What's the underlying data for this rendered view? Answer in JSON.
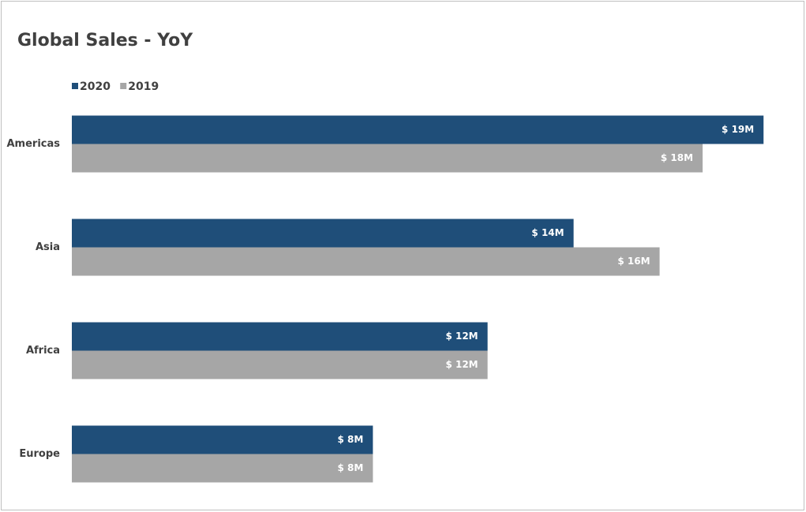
{
  "chart_data": {
    "type": "hbar",
    "title": "Global Sales - YoY",
    "categories": [
      "Americas",
      "Asia",
      "Africa",
      "Europe"
    ],
    "series": [
      {
        "name": "2020",
        "color": "#1f4e79",
        "values": [
          19.3,
          14.0,
          11.6,
          8.4
        ],
        "value_labels": [
          "$ 19M",
          "$ 14M",
          "$ 12M",
          "$ 8M"
        ]
      },
      {
        "name": "2019",
        "color": "#a6a6a6",
        "values": [
          17.6,
          16.4,
          11.6,
          8.4
        ],
        "value_labels": [
          "$ 18M",
          "$ 16M",
          "$ 12M",
          "$ 8M"
        ]
      }
    ],
    "xlim": [
      0,
      20
    ],
    "legend": "top-left"
  }
}
